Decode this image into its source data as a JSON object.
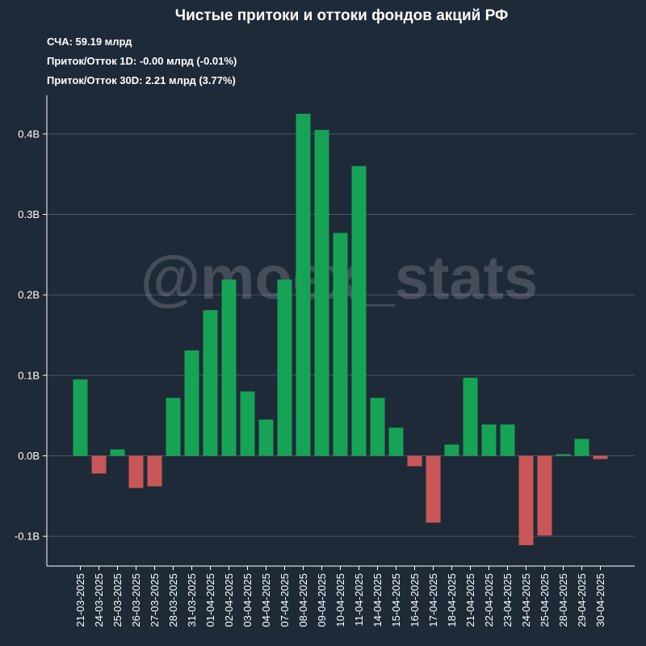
{
  "chart_data": {
    "type": "bar",
    "title": "Чистые притоки и оттоки фондов акций РФ",
    "stats": [
      "СЧА: 59.19 млрд",
      "Приток/Отток 1D: -0.00 млрд (-0.01%)",
      "Приток/Отток 30D: 2.21 млрд (3.77%)"
    ],
    "watermark": "@moex_stats",
    "categories": [
      "21-03-2025",
      "24-03-2025",
      "25-03-2025",
      "26-03-2025",
      "27-03-2025",
      "28-03-2025",
      "31-03-2025",
      "01-04-2025",
      "02-04-2025",
      "03-04-2025",
      "04-04-2025",
      "07-04-2025",
      "08-04-2025",
      "09-04-2025",
      "10-04-2025",
      "11-04-2025",
      "14-04-2025",
      "15-04-2025",
      "16-04-2025",
      "17-04-2025",
      "18-04-2025",
      "21-04-2025",
      "22-04-2025",
      "23-04-2025",
      "24-04-2025",
      "25-04-2025",
      "28-04-2025",
      "29-04-2025",
      "30-04-2025"
    ],
    "values": [
      0.095,
      -0.022,
      0.008,
      -0.04,
      -0.038,
      0.072,
      0.131,
      0.181,
      0.219,
      0.08,
      0.045,
      0.219,
      0.425,
      0.405,
      0.277,
      0.36,
      0.072,
      0.035,
      -0.013,
      -0.083,
      0.014,
      0.097,
      0.039,
      0.039,
      -0.111,
      -0.099,
      0.002,
      0.021,
      -0.004
    ],
    "y_ticks": [
      -0.1,
      0.0,
      0.1,
      0.2,
      0.3,
      0.4
    ],
    "y_tick_labels": [
      "-0.1B",
      "0.0B",
      "0.1B",
      "0.2B",
      "0.3B",
      "0.4B"
    ],
    "ylim": [
      -0.137,
      0.448
    ],
    "grid": true,
    "colors": {
      "background": "#1f2a38",
      "positive": "#16a356",
      "negative": "#c95757",
      "grid": "#4a5666",
      "axis": "#ffffff"
    }
  }
}
